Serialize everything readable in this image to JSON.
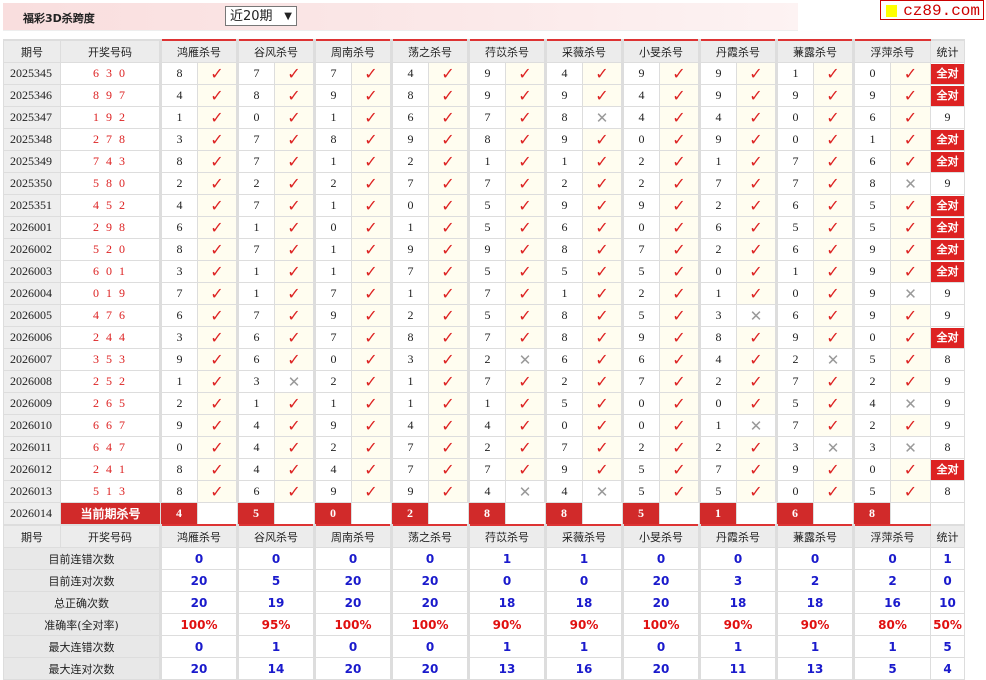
{
  "header": {
    "title": "福彩3D杀跨度",
    "period_select": "近20期",
    "logo": "cz89.com"
  },
  "columns": {
    "issue": "期号",
    "draw": "开奖号码",
    "killers": [
      "鸿雁杀号",
      "谷风杀号",
      "周南杀号",
      "荡之杀号",
      "荇苡杀号",
      "采薇杀号",
      "小旻杀号",
      "丹霞杀号",
      "蒹露杀号",
      "浮萍杀号"
    ],
    "stats": "统计"
  },
  "all_correct_label": "全对",
  "rows": [
    {
      "issue": "2025345",
      "draw": "6 3 0",
      "kills": [
        8,
        7,
        7,
        4,
        9,
        4,
        9,
        9,
        1,
        0
      ],
      "ok": [
        1,
        1,
        1,
        1,
        1,
        1,
        1,
        1,
        1,
        1
      ],
      "stat": "全对"
    },
    {
      "issue": "2025346",
      "draw": "8 9 7",
      "kills": [
        4,
        8,
        9,
        8,
        9,
        9,
        4,
        9,
        9,
        9
      ],
      "ok": [
        1,
        1,
        1,
        1,
        1,
        1,
        1,
        1,
        1,
        1
      ],
      "stat": "全对"
    },
    {
      "issue": "2025347",
      "draw": "1 9 2",
      "kills": [
        1,
        0,
        1,
        6,
        7,
        8,
        4,
        4,
        0,
        6
      ],
      "ok": [
        1,
        1,
        1,
        1,
        1,
        0,
        1,
        1,
        1,
        1
      ],
      "stat": "9"
    },
    {
      "issue": "2025348",
      "draw": "2 7 8",
      "kills": [
        3,
        7,
        8,
        9,
        8,
        9,
        0,
        9,
        0,
        1
      ],
      "ok": [
        1,
        1,
        1,
        1,
        1,
        1,
        1,
        1,
        1,
        1
      ],
      "stat": "全对"
    },
    {
      "issue": "2025349",
      "draw": "7 4 3",
      "kills": [
        8,
        7,
        1,
        2,
        1,
        1,
        2,
        1,
        7,
        6
      ],
      "ok": [
        1,
        1,
        1,
        1,
        1,
        1,
        1,
        1,
        1,
        1
      ],
      "stat": "全对"
    },
    {
      "issue": "2025350",
      "draw": "5 8 0",
      "kills": [
        2,
        2,
        2,
        7,
        7,
        2,
        2,
        7,
        7,
        8
      ],
      "ok": [
        1,
        1,
        1,
        1,
        1,
        1,
        1,
        1,
        1,
        0
      ],
      "stat": "9"
    },
    {
      "issue": "2025351",
      "draw": "4 5 2",
      "kills": [
        4,
        7,
        1,
        0,
        5,
        9,
        9,
        2,
        6,
        5
      ],
      "ok": [
        1,
        1,
        1,
        1,
        1,
        1,
        1,
        1,
        1,
        1
      ],
      "stat": "全对"
    },
    {
      "issue": "2026001",
      "draw": "2 9 8",
      "kills": [
        6,
        1,
        0,
        1,
        5,
        6,
        0,
        6,
        5,
        5
      ],
      "ok": [
        1,
        1,
        1,
        1,
        1,
        1,
        1,
        1,
        1,
        1
      ],
      "stat": "全对"
    },
    {
      "issue": "2026002",
      "draw": "5 2 0",
      "kills": [
        8,
        7,
        1,
        9,
        9,
        8,
        7,
        2,
        6,
        9
      ],
      "ok": [
        1,
        1,
        1,
        1,
        1,
        1,
        1,
        1,
        1,
        1
      ],
      "stat": "全对"
    },
    {
      "issue": "2026003",
      "draw": "6 0 1",
      "kills": [
        3,
        1,
        1,
        7,
        5,
        5,
        5,
        0,
        1,
        9
      ],
      "ok": [
        1,
        1,
        1,
        1,
        1,
        1,
        1,
        1,
        1,
        1
      ],
      "stat": "全对"
    },
    {
      "issue": "2026004",
      "draw": "0 1 9",
      "kills": [
        7,
        1,
        7,
        1,
        7,
        1,
        2,
        1,
        0,
        9
      ],
      "ok": [
        1,
        1,
        1,
        1,
        1,
        1,
        1,
        1,
        1,
        0
      ],
      "stat": "9"
    },
    {
      "issue": "2026005",
      "draw": "4 7 6",
      "kills": [
        6,
        7,
        9,
        2,
        5,
        8,
        5,
        3,
        6,
        9
      ],
      "ok": [
        1,
        1,
        1,
        1,
        1,
        1,
        1,
        0,
        1,
        1
      ],
      "stat": "9"
    },
    {
      "issue": "2026006",
      "draw": "2 4 4",
      "kills": [
        3,
        6,
        7,
        8,
        7,
        8,
        9,
        8,
        9,
        0
      ],
      "ok": [
        1,
        1,
        1,
        1,
        1,
        1,
        1,
        1,
        1,
        1
      ],
      "stat": "全对"
    },
    {
      "issue": "2026007",
      "draw": "3 5 3",
      "kills": [
        9,
        6,
        0,
        3,
        2,
        6,
        6,
        4,
        2,
        5
      ],
      "ok": [
        1,
        1,
        1,
        1,
        0,
        1,
        1,
        1,
        0,
        1
      ],
      "stat": "8"
    },
    {
      "issue": "2026008",
      "draw": "2 5 2",
      "kills": [
        1,
        3,
        2,
        1,
        7,
        2,
        7,
        2,
        7,
        2
      ],
      "ok": [
        1,
        0,
        1,
        1,
        1,
        1,
        1,
        1,
        1,
        1
      ],
      "stat": "9"
    },
    {
      "issue": "2026009",
      "draw": "2 6 5",
      "kills": [
        2,
        1,
        1,
        1,
        1,
        5,
        0,
        0,
        5,
        4
      ],
      "ok": [
        1,
        1,
        1,
        1,
        1,
        1,
        1,
        1,
        1,
        0
      ],
      "stat": "9"
    },
    {
      "issue": "2026010",
      "draw": "6 6 7",
      "kills": [
        9,
        4,
        9,
        4,
        4,
        0,
        0,
        1,
        7,
        2
      ],
      "ok": [
        1,
        1,
        1,
        1,
        1,
        1,
        1,
        0,
        1,
        1
      ],
      "stat": "9"
    },
    {
      "issue": "2026011",
      "draw": "6 4 7",
      "kills": [
        0,
        4,
        2,
        7,
        2,
        7,
        2,
        2,
        3,
        3
      ],
      "ok": [
        1,
        1,
        1,
        1,
        1,
        1,
        1,
        1,
        0,
        0
      ],
      "stat": "8"
    },
    {
      "issue": "2026012",
      "draw": "2 4 1",
      "kills": [
        8,
        4,
        4,
        7,
        7,
        9,
        5,
        7,
        9,
        0
      ],
      "ok": [
        1,
        1,
        1,
        1,
        1,
        1,
        1,
        1,
        1,
        1
      ],
      "stat": "全对"
    },
    {
      "issue": "2026013",
      "draw": "5 1 3",
      "kills": [
        8,
        6,
        9,
        9,
        4,
        4,
        5,
        5,
        0,
        5
      ],
      "ok": [
        1,
        1,
        1,
        1,
        0,
        0,
        1,
        1,
        1,
        1
      ],
      "stat": "8"
    }
  ],
  "current": {
    "issue": "2026014",
    "label": "当前期杀号",
    "kills": [
      4,
      5,
      0,
      2,
      8,
      8,
      5,
      1,
      6,
      8
    ]
  },
  "stats": [
    {
      "label": "目前连错次数",
      "values": [
        "0",
        "0",
        "0",
        "0",
        "1",
        "1",
        "0",
        "0",
        "0",
        "0",
        "1"
      ]
    },
    {
      "label": "目前连对次数",
      "values": [
        "20",
        "5",
        "20",
        "20",
        "0",
        "0",
        "20",
        "3",
        "2",
        "2",
        "0"
      ]
    },
    {
      "label": "总正确次数",
      "values": [
        "20",
        "19",
        "20",
        "20",
        "18",
        "18",
        "20",
        "18",
        "18",
        "16",
        "10"
      ]
    },
    {
      "label": "准确率(全对率)",
      "values": [
        "100%",
        "95%",
        "100%",
        "100%",
        "90%",
        "90%",
        "100%",
        "90%",
        "90%",
        "80%",
        "50%"
      ],
      "highlight": true
    },
    {
      "label": "最大连错次数",
      "values": [
        "0",
        "1",
        "0",
        "0",
        "1",
        "1",
        "0",
        "1",
        "1",
        "1",
        "5"
      ]
    },
    {
      "label": "最大连对次数",
      "values": [
        "20",
        "14",
        "20",
        "20",
        "13",
        "16",
        "20",
        "11",
        "13",
        "5",
        "4"
      ]
    }
  ],
  "colors": {
    "accent": "#d12a2a",
    "stat_blue": "#1a1acc",
    "check": "#d22222",
    "cross": "#999999"
  },
  "icons": {
    "correct": "check-icon",
    "wrong": "cross-icon"
  }
}
